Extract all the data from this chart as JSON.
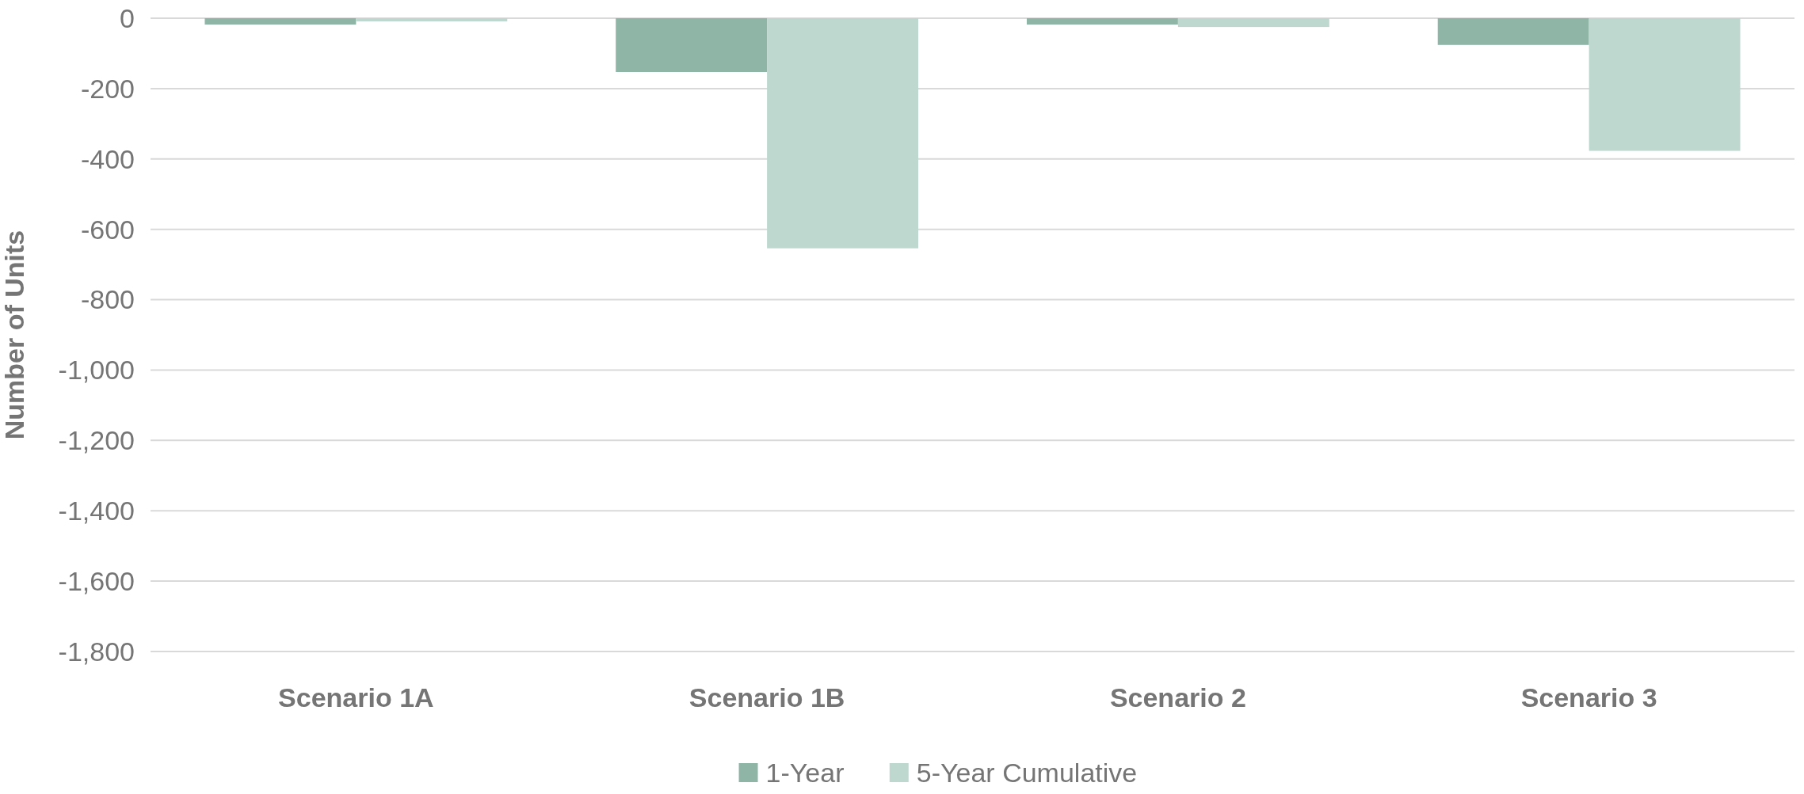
{
  "chart_data": {
    "type": "bar",
    "ylabel": "Number of Units",
    "categories": [
      "Scenario 1A",
      "Scenario 1B",
      "Scenario 2",
      "Scenario 3"
    ],
    "series": [
      {
        "name": "1-Year",
        "color": "#8fb5a7",
        "values": [
          -18,
          -153,
          -18,
          -76
        ]
      },
      {
        "name": "5-Year Cumulative",
        "color": "#bed8cf",
        "values": [
          -9,
          -654,
          -25,
          -377
        ]
      }
    ],
    "ylim": [
      -1800,
      0
    ],
    "yticks": [
      {
        "value": 0,
        "label": "0"
      },
      {
        "value": -200,
        "label": "-200"
      },
      {
        "value": -400,
        "label": "-400"
      },
      {
        "value": -600,
        "label": "-600"
      },
      {
        "value": -800,
        "label": "-800"
      },
      {
        "value": -1000,
        "label": "-1,000"
      },
      {
        "value": -1200,
        "label": "-1,200"
      },
      {
        "value": -1400,
        "label": "-1,400"
      },
      {
        "value": -1600,
        "label": "-1,600"
      },
      {
        "value": -1800,
        "label": "-1,800"
      }
    ],
    "grid": "y",
    "legend": "bottom"
  }
}
